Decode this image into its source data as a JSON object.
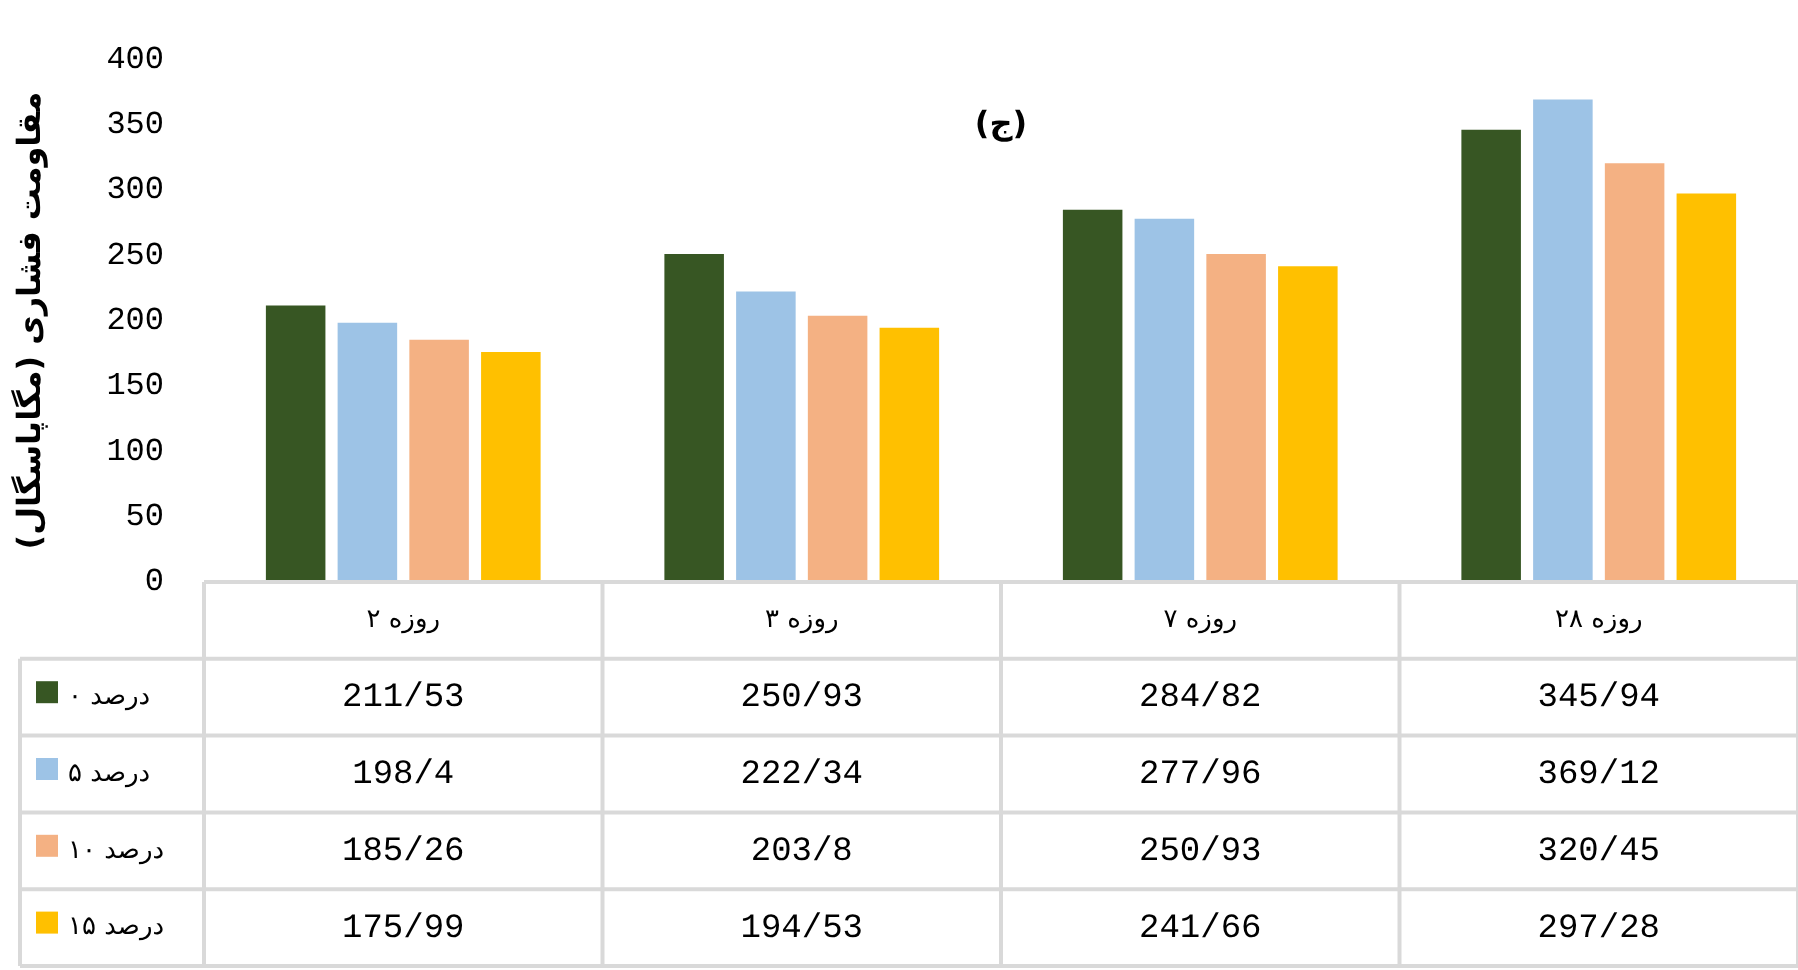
{
  "chart_data": {
    "type": "bar",
    "title": "(ج)",
    "ylabel": "مقاومت فشاری (مگاپاسگال)",
    "categories": [
      "۲ روزه",
      "۳ روزه",
      "۷ روزه",
      "۲۸ روزه"
    ],
    "series": [
      {
        "name": "۰ درصد",
        "color": "#375623",
        "values": [
          211.53,
          250.93,
          284.82,
          345.94
        ],
        "value_labels": [
          "211/53",
          "250/93",
          "284/82",
          "345/94"
        ]
      },
      {
        "name": "۵ درصد",
        "color": "#9dc3e6",
        "values": [
          198.4,
          222.34,
          277.96,
          369.12
        ],
        "value_labels": [
          "198/4",
          "222/34",
          "277/96",
          "369/12"
        ]
      },
      {
        "name": "۱۰ درصد",
        "color": "#f4b183",
        "values": [
          185.26,
          203.8,
          250.93,
          320.45
        ],
        "value_labels": [
          "185/26",
          "203/8",
          "250/93",
          "320/45"
        ]
      },
      {
        "name": "۱۵ درصد",
        "color": "#ffc000",
        "values": [
          175.99,
          194.53,
          241.66,
          297.28
        ],
        "value_labels": [
          "175/99",
          "194/53",
          "241/66",
          "297/28"
        ]
      }
    ],
    "ylim": [
      0,
      400
    ],
    "yticks": [
      0,
      50,
      100,
      150,
      200,
      250,
      300,
      350,
      400
    ],
    "grid": false,
    "legend": "bottom left"
  }
}
